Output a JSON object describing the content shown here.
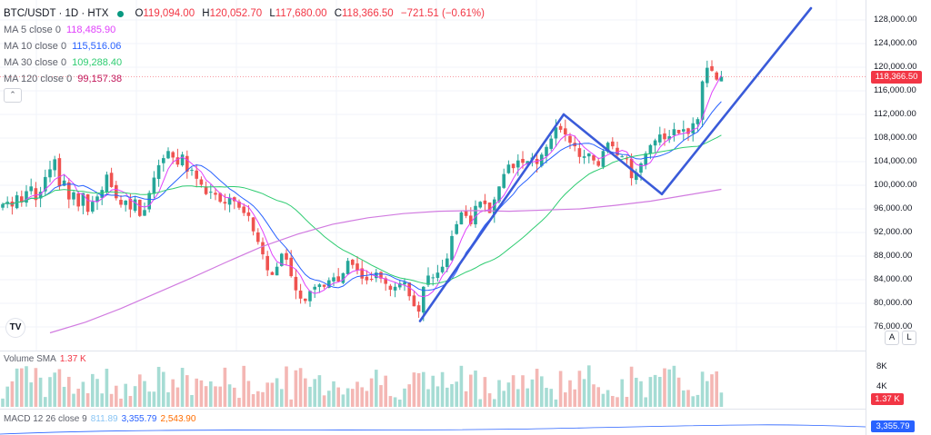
{
  "header": {
    "symbol": "BTC/USDT · 1D · HTX",
    "ohlc": [
      {
        "key": "O",
        "value": "119,094.00"
      },
      {
        "key": "H",
        "value": "120,052.70"
      },
      {
        "key": "L",
        "value": "117,680.00"
      },
      {
        "key": "C",
        "value": "118,366.50"
      },
      {
        "key": "",
        "value": "−721.51 (−0.61%)"
      }
    ],
    "status_color": "#089981"
  },
  "indicators": [
    {
      "label": "MA 5 close 0",
      "value": "118,485.90",
      "color": "#e040fb"
    },
    {
      "label": "MA 10 close 0",
      "value": "115,516.06",
      "color": "#2962ff"
    },
    {
      "label": "MA 30 close 0",
      "value": "109,288.40",
      "color": "#2ecc71"
    },
    {
      "label": "MA 120 close 0",
      "value": "99,157.38",
      "color": "#c2185b"
    }
  ],
  "collapse_icon": "chevron-up-icon",
  "price_axis": {
    "ticks": [
      "128,000.00",
      "124,000.00",
      "120,000.00",
      "116,000.00",
      "112,000.00",
      "108,000.00",
      "104,000.00",
      "100,000.00",
      "96,000.00",
      "92,000.00",
      "88,000.00",
      "84,000.00",
      "80,000.00",
      "76,000.00"
    ],
    "last_price": "118,366.50",
    "auto_button": "A",
    "log_button": "L"
  },
  "volume": {
    "label": "Volume SMA",
    "value": "1.37 K",
    "ticks": [
      "8K",
      "4K"
    ],
    "last_tag": "1.37 K"
  },
  "macd": {
    "label": "MACD 12 26 close 9",
    "hist": "811.89",
    "macd": "3,355.79",
    "signal": "2,543.90",
    "last_tag": "3,355.79"
  },
  "logo_text": "TV",
  "colors": {
    "up": "#26a69a",
    "down": "#ef5350",
    "drawing": "#3a5bd9",
    "last_price_line": "#f23645"
  },
  "chart_data": {
    "type": "candlestick",
    "y_range": [
      74000,
      130000
    ],
    "close_path": [
      96800,
      97200,
      96400,
      98300,
      97100,
      99000,
      99800,
      97500,
      98900,
      101400,
      102700,
      104400,
      99800,
      100800,
      97600,
      98800,
      96400,
      98700,
      95500,
      97200,
      98100,
      99200,
      101800,
      99700,
      97800,
      96700,
      97400,
      95900,
      97600,
      94800,
      95800,
      98700,
      101300,
      103400,
      104600,
      105800,
      104700,
      103500,
      105200,
      102300,
      102600,
      101100,
      100100,
      98500,
      98900,
      98400,
      97200,
      96900,
      97900,
      97300,
      96200,
      95300,
      94800,
      92200,
      90400,
      88300,
      85600,
      84800,
      86200,
      88400,
      87400,
      84600,
      82200,
      80800,
      80400,
      82100,
      82800,
      83200,
      82800,
      83900,
      84400,
      83700,
      85100,
      87200,
      86500,
      85600,
      84200,
      83900,
      84100,
      85200,
      84200,
      83300,
      82300,
      82800,
      83400,
      83600,
      81200,
      79500,
      78600,
      82800,
      84700,
      84400,
      85200,
      86200,
      87600,
      91400,
      93400,
      95400,
      94800,
      93400,
      96500,
      97200,
      96800,
      95300,
      97600,
      99800,
      101900,
      103500,
      102900,
      104200,
      103800,
      104100,
      104700,
      103600,
      105200,
      106500,
      107900,
      109800,
      109400,
      108600,
      107200,
      106600,
      104800,
      104900,
      105400,
      104200,
      103300,
      105800,
      107200,
      106600,
      105100,
      104900,
      104400,
      101200,
      102200,
      103700,
      105400,
      106800,
      107600,
      108600,
      107800,
      108300,
      109500,
      108800,
      109500,
      108700,
      110500,
      111200,
      117600,
      119900,
      119400,
      117900,
      118366.5
    ],
    "ma120_path": [
      75000,
      76800,
      79100,
      81700,
      84300,
      87000,
      89600,
      91700,
      93400,
      94500,
      95200,
      95600,
      95700,
      95600,
      95800,
      96000,
      96600,
      97300,
      98300,
      99300
    ],
    "lines": [
      {
        "name": "trend-1",
        "from": [
          77000,
          1
        ],
        "to": [
          112000,
          1
        ]
      },
      {
        "name": "trend-2",
        "from": [
          112000,
          1
        ],
        "to": [
          98500,
          1
        ]
      },
      {
        "name": "trend-3",
        "from": [
          98500,
          1
        ],
        "to": [
          130000,
          1
        ]
      }
    ]
  }
}
